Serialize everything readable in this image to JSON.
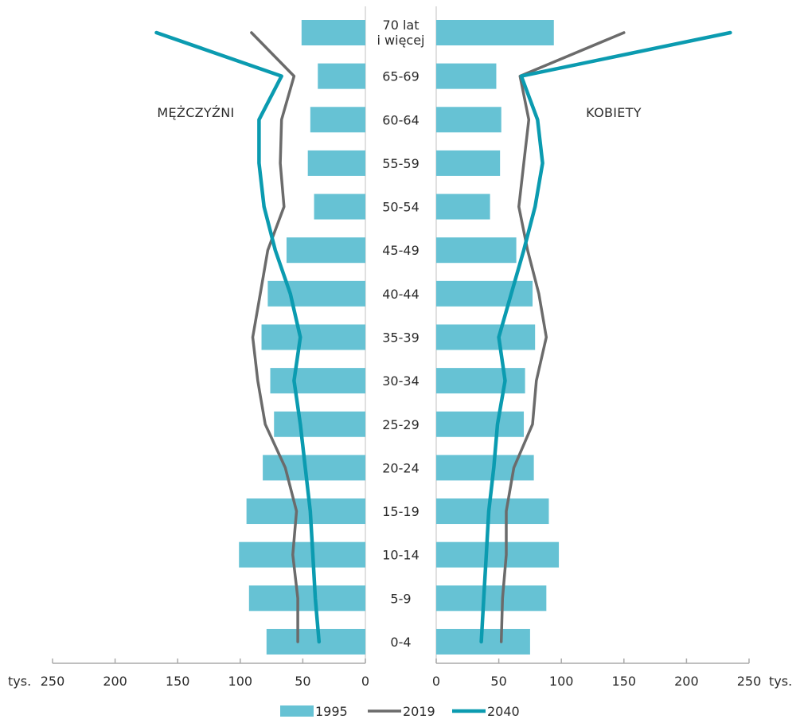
{
  "chart_data": {
    "type": "population-pyramid",
    "title": "",
    "left_label": "MĘŻCZYŹNI",
    "right_label": "KOBIETY",
    "unit_left": "tys.",
    "unit_right": "tys.",
    "xlim": [
      0,
      250
    ],
    "x_ticks": [
      "250",
      "200",
      "150",
      "100",
      "50",
      "0"
    ],
    "x_ticks_right": [
      "0",
      "50",
      "100",
      "150",
      "200",
      "250"
    ],
    "categories": [
      "70 lat i więcej",
      "65-69",
      "60-64",
      "55-59",
      "50-54",
      "45-49",
      "40-44",
      "35-39",
      "30-34",
      "25-29",
      "20-24",
      "15-19",
      "10-14",
      "5-9",
      "0-4"
    ],
    "category_lines": [
      [
        "70 lat",
        "i więcej"
      ],
      [
        "65-69"
      ],
      [
        "60-64"
      ],
      [
        "55-59"
      ],
      [
        "50-54"
      ],
      [
        "45-49"
      ],
      [
        "40-44"
      ],
      [
        "35-39"
      ],
      [
        "30-34"
      ],
      [
        "25-29"
      ],
      [
        "20-24"
      ],
      [
        "15-19"
      ],
      [
        "10-14"
      ],
      [
        "5-9"
      ],
      [
        "0-4"
      ]
    ],
    "series": [
      {
        "name": "1995",
        "kind": "bar",
        "color": "#66c2d4",
        "male": [
          51,
          38,
          44,
          46,
          41,
          63,
          78,
          83,
          76,
          73,
          82,
          95,
          101,
          93,
          79
        ],
        "female": [
          94,
          48,
          52,
          51,
          43,
          64,
          77,
          79,
          71,
          70,
          78,
          90,
          98,
          88,
          75
        ]
      },
      {
        "name": "2019",
        "kind": "line",
        "color": "#6b6b6b",
        "male": [
          91,
          57,
          67,
          68,
          65,
          78,
          84,
          90,
          86,
          80,
          64,
          55,
          58,
          54,
          54
        ],
        "female": [
          150,
          67,
          74,
          70,
          66,
          73,
          82,
          88,
          80,
          77,
          62,
          56,
          56,
          53,
          52
        ]
      },
      {
        "name": "2040",
        "kind": "line",
        "color": "#0b9bb0",
        "male": [
          167,
          67,
          85,
          85,
          81,
          72,
          60,
          52,
          57,
          52,
          48,
          44,
          42,
          40,
          37
        ],
        "female": [
          235,
          68,
          81,
          85,
          79,
          70,
          60,
          50,
          55,
          49,
          46,
          42,
          40,
          38,
          36
        ]
      }
    ],
    "legend": {
      "position": "bottom",
      "items": [
        "1995",
        "2019",
        "2040"
      ]
    }
  }
}
